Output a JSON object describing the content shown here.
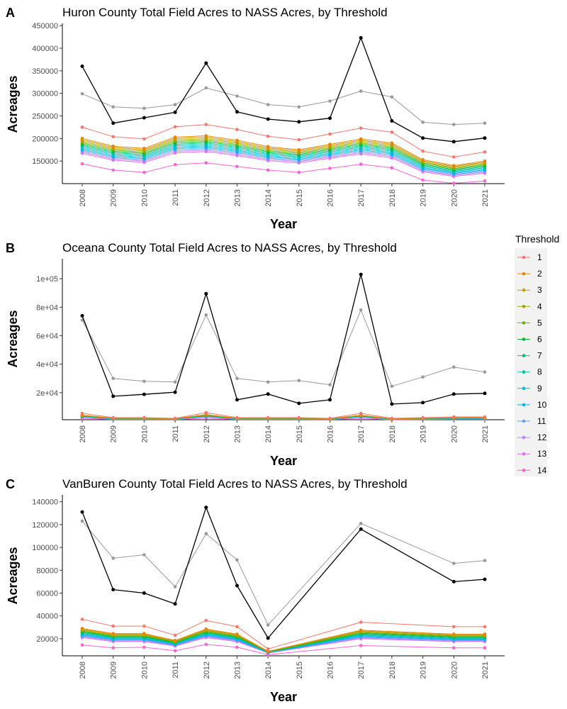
{
  "legend": {
    "title": "Threshold",
    "entries": [
      "1",
      "2",
      "3",
      "4",
      "5",
      "6",
      "7",
      "8",
      "9",
      "10",
      "11",
      "12",
      "13",
      "14"
    ],
    "colors": [
      "#F8766D",
      "#E58700",
      "#C99800",
      "#A3A500",
      "#6BB100",
      "#00BA38",
      "#00BF7D",
      "#00C0AF",
      "#00BCD8",
      "#00B0F6",
      "#619CFF",
      "#B983FF",
      "#E76BF3",
      "#FD61D1"
    ]
  },
  "colors": {
    "black_series": "#000000",
    "gray_series": "#999999",
    "axis": "#000000"
  },
  "chart_data": [
    {
      "type": "line",
      "panel_label": "A",
      "title": "Huron County Total Field Acres to NASS Acres, by Threshold",
      "xlabel": "Year",
      "ylabel": "Acreages",
      "ylim": [
        100000,
        455000
      ],
      "yticks": [
        150000,
        200000,
        250000,
        300000,
        350000,
        400000,
        450000
      ],
      "ytick_labels": [
        "150000",
        "200000",
        "250000",
        "300000",
        "350000",
        "400000",
        "450000"
      ],
      "x": [
        2008,
        2009,
        2010,
        2011,
        2012,
        2013,
        2014,
        2015,
        2016,
        2017,
        2018,
        2019,
        2020,
        2021
      ],
      "black": [
        360000,
        234000,
        246000,
        258000,
        367000,
        259000,
        243000,
        237000,
        245000,
        423000,
        239000,
        201000,
        193000,
        201000
      ],
      "gray": [
        299000,
        270000,
        267000,
        275000,
        312000,
        294000,
        275000,
        270000,
        283000,
        305000,
        292000,
        236000,
        231000,
        234000
      ],
      "thresholds": {
        "top": [
          225000,
          204000,
          199000,
          226000,
          231000,
          220000,
          205000,
          197000,
          210000,
          223000,
          214000,
          172000,
          159000,
          170000
        ],
        "bottom": [
          144000,
          130000,
          125000,
          142000,
          146000,
          138000,
          130000,
          125000,
          134000,
          143000,
          135000,
          108000,
          101000,
          106000
        ],
        "band_top": [
          200000,
          183000,
          178000,
          203000,
          206000,
          196000,
          182000,
          175000,
          187000,
          199000,
          190000,
          153000,
          140000,
          150000
        ],
        "band_bottom": [
          167000,
          152000,
          147000,
          168000,
          171000,
          162000,
          151000,
          146000,
          156000,
          166000,
          157000,
          126000,
          116000,
          123000
        ],
        "gaps": []
      }
    },
    {
      "type": "line",
      "panel_label": "B",
      "title": "Oceana County Total Field Acres to NASS Acres, by Threshold",
      "xlabel": "Year",
      "ylabel": "Acreages",
      "ylim": [
        1000,
        114000
      ],
      "yticks": [
        20000,
        40000,
        60000,
        80000,
        100000
      ],
      "ytick_labels": [
        "2e+04",
        "4e+04",
        "6e+04",
        "8e+04",
        "1e+05"
      ],
      "x": [
        2008,
        2009,
        2010,
        2011,
        2012,
        2013,
        2014,
        2015,
        2016,
        2017,
        2018,
        2019,
        2020,
        2021
      ],
      "black": [
        74000,
        17500,
        18800,
        20300,
        89500,
        15000,
        19000,
        12500,
        15000,
        103000,
        12000,
        13000,
        19000,
        19500
      ],
      "gray": [
        71000,
        30000,
        28000,
        27500,
        74500,
        30000,
        27500,
        28500,
        25500,
        78000,
        24500,
        31000,
        38000,
        34500
      ],
      "thresholds": {
        "top": [
          5500,
          2500,
          2500,
          2000,
          6000,
          2500,
          2500,
          2500,
          2000,
          5500,
          2000,
          2500,
          3000,
          3000
        ],
        "bottom": [
          2000,
          1200,
          1200,
          1100,
          2200,
          1200,
          1200,
          1200,
          1100,
          2000,
          1000,
          1200,
          1300,
          1300
        ],
        "band_top": [
          4200,
          2100,
          2100,
          1800,
          4600,
          2100,
          2100,
          2100,
          1800,
          4200,
          1700,
          2100,
          2500,
          2500
        ],
        "band_bottom": [
          2800,
          1500,
          1500,
          1400,
          3000,
          1500,
          1500,
          1500,
          1400,
          2800,
          1300,
          1500,
          1700,
          1700
        ],
        "gaps": []
      }
    },
    {
      "type": "line",
      "panel_label": "C",
      "title": "VanBuren County Total Field Acres to NASS Acres, by Threshold",
      "xlabel": "Year",
      "ylabel": "Acreages",
      "ylim": [
        5000,
        146000
      ],
      "yticks": [
        20000,
        40000,
        60000,
        80000,
        100000,
        120000,
        140000
      ],
      "ytick_labels": [
        "20000",
        "40000",
        "60000",
        "80000",
        "100000",
        "120000",
        "140000"
      ],
      "x": [
        2008,
        2009,
        2010,
        2011,
        2012,
        2013,
        2014,
        2015,
        2016,
        2017,
        2018,
        2019,
        2020,
        2021
      ],
      "black": [
        131000,
        63000,
        60000,
        50500,
        135000,
        66500,
        20500,
        null,
        null,
        116000,
        null,
        null,
        70000,
        72000
      ],
      "gray": [
        123000,
        90500,
        93500,
        65500,
        112000,
        89000,
        32000,
        null,
        null,
        121000,
        null,
        null,
        86000,
        88500
      ],
      "thresholds": {
        "top": [
          37000,
          31000,
          31000,
          23000,
          36000,
          30500,
          11000,
          null,
          null,
          34500,
          null,
          null,
          30500,
          30500
        ],
        "bottom": [
          14500,
          12000,
          12500,
          9500,
          15000,
          12500,
          6000,
          null,
          null,
          14000,
          null,
          null,
          12000,
          12000
        ],
        "band_top": [
          29000,
          24500,
          24500,
          18500,
          28500,
          24000,
          9000,
          null,
          null,
          27500,
          null,
          null,
          24000,
          24000
        ],
        "band_bottom": [
          21000,
          17500,
          17500,
          13500,
          21000,
          17500,
          7500,
          null,
          null,
          20000,
          null,
          null,
          17500,
          17500
        ],
        "gaps": [
          7,
          8,
          10,
          11
        ]
      }
    }
  ]
}
